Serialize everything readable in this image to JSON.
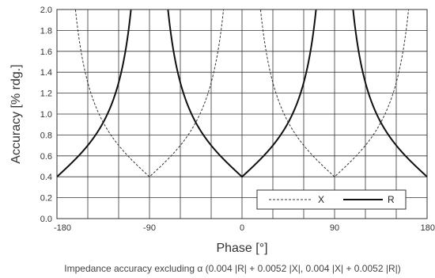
{
  "chart_data": {
    "type": "line",
    "xlabel": "Phase [°]",
    "ylabel": "Accuracy [% rdg.]",
    "caption": "Impedance accuracy excluding α (0.004 |R| + 0.0052 |X|, 0.004 |X| + 0.0052 |R|)",
    "xlim": [
      -180,
      180
    ],
    "ylim": [
      0,
      2.0
    ],
    "x_ticks": [
      -180,
      -90,
      0,
      90,
      180
    ],
    "x_tick_labels": [
      "-180",
      "-90",
      "0",
      "90",
      "180"
    ],
    "y_ticks": [
      0,
      0.2,
      0.4,
      0.6,
      0.8,
      1.0,
      1.2,
      1.4,
      1.6,
      1.8,
      2.0
    ],
    "y_tick_labels": [
      "0.0",
      "0.2",
      "0.4",
      "0.6",
      "0.8",
      "1.0",
      "1.2",
      "1.4",
      "1.6",
      "1.8",
      "2.0"
    ],
    "grid": true,
    "legend_position": "bottom-right",
    "series": [
      {
        "name": "X",
        "style": "dashed",
        "color": "#333333",
        "formula": "100*(0.004*|X| + 0.0052*|R|)/|X|"
      },
      {
        "name": "R",
        "style": "solid",
        "color": "#111111",
        "formula": "100*(0.004*|R| + 0.0052*|X|)/|R|"
      }
    ]
  }
}
